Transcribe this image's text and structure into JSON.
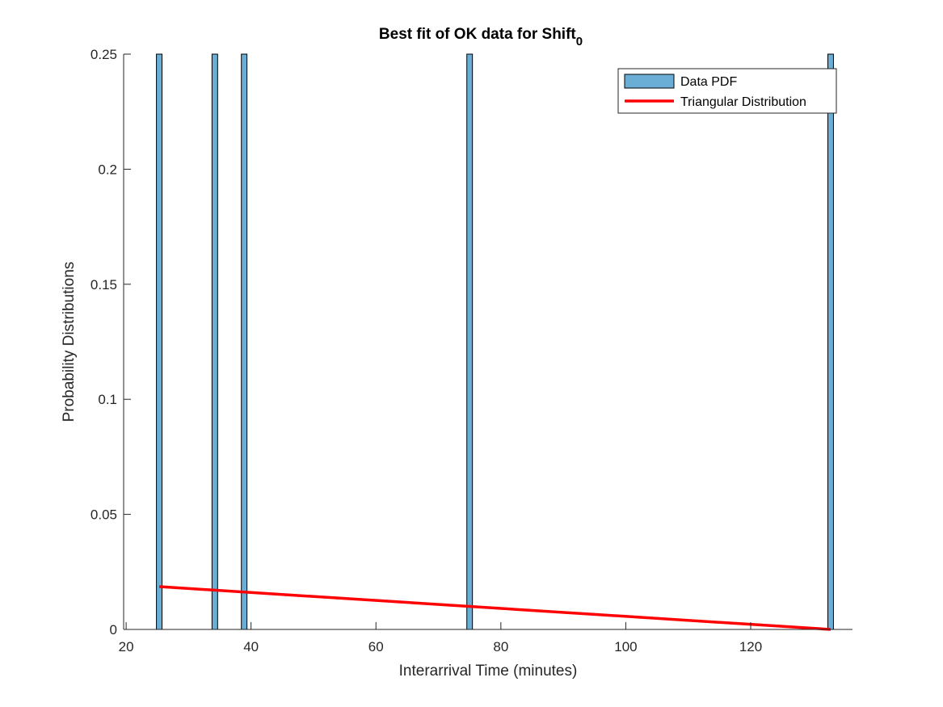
{
  "chart_data": {
    "type": "bar",
    "title": "Best fit of OK data for Shift",
    "title_subscript": "0",
    "xlabel": "Interarrival Time (minutes)",
    "ylabel": "Probability Distributions",
    "xlim": [
      19.6,
      136.3
    ],
    "ylim": [
      0,
      0.25
    ],
    "xticks": [
      20,
      40,
      60,
      80,
      100,
      120
    ],
    "yticks": [
      0,
      0.05,
      0.1,
      0.15,
      0.2,
      0.25
    ],
    "xtick_labels": [
      "20",
      "40",
      "60",
      "80",
      "100",
      "120"
    ],
    "ytick_labels": [
      "0",
      "0.05",
      "0.1",
      "0.15",
      "0.2",
      "0.25"
    ],
    "grid": false,
    "legend_position": "top-right",
    "bar_width": 0.9,
    "series": [
      {
        "name": "Data PDF",
        "kind": "bar",
        "color": "#6aaed6",
        "edge_color": "#000000",
        "x": [
          25.3,
          34.2,
          38.9,
          75.0,
          132.8
        ],
        "values": [
          0.25,
          0.25,
          0.25,
          0.25,
          0.25
        ]
      },
      {
        "name": "Triangular Distribution",
        "kind": "line",
        "color": "#ff0000",
        "x": [
          25.3,
          132.8
        ],
        "values": [
          0.0186,
          0.0
        ]
      }
    ]
  }
}
